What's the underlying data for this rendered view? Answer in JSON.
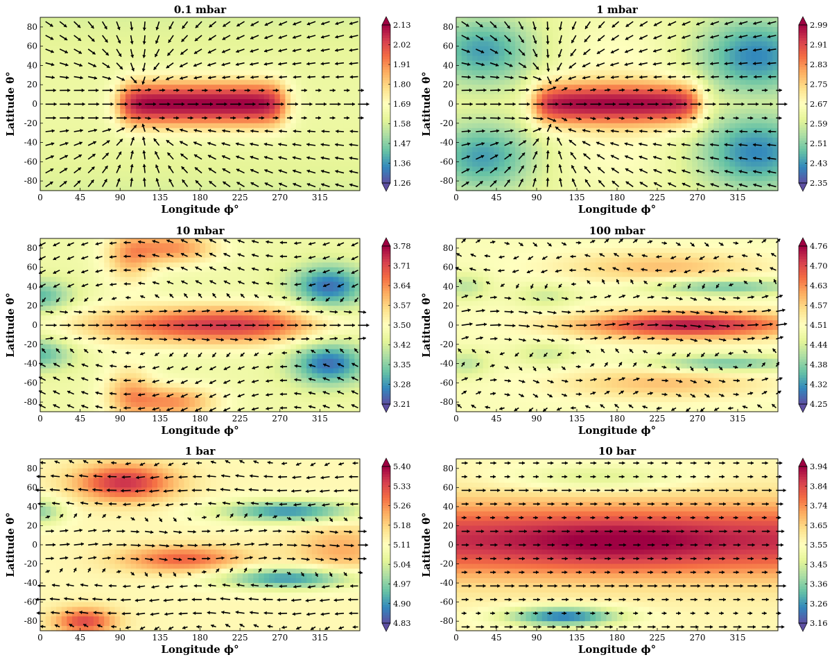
{
  "chart_data": [
    {
      "type": "heatmap",
      "title": "0.1 mbar",
      "xlabel": "Longitude ϕ°",
      "ylabel": "Latitude θ°",
      "xlim": [
        0,
        360
      ],
      "ylim": [
        -90,
        90
      ],
      "xticks": [
        "0",
        "45",
        "90",
        "135",
        "180",
        "225",
        "270",
        "315"
      ],
      "yticks": [
        "80",
        "60",
        "40",
        "20",
        "0",
        "-20",
        "-40",
        "-60",
        "-80"
      ],
      "colorbar": {
        "min": 1.26,
        "max": 2.13,
        "ticks": [
          "2.13",
          "2.02",
          "1.91",
          "1.80",
          "1.69",
          "1.58",
          "1.47",
          "1.36",
          "1.26"
        ]
      },
      "pattern": "hot equatorial band 90°–270° longitude, flow converging toward (110°, ±15°)"
    },
    {
      "type": "heatmap",
      "title": "1 mbar",
      "xlabel": "Longitude ϕ°",
      "ylabel": "Latitude θ°",
      "xlim": [
        0,
        360
      ],
      "ylim": [
        -90,
        90
      ],
      "xticks": [
        "0",
        "45",
        "90",
        "135",
        "180",
        "225",
        "270",
        "315"
      ],
      "yticks": [
        "80",
        "60",
        "40",
        "20",
        "0",
        "-20",
        "-40",
        "-60",
        "-80"
      ],
      "colorbar": {
        "min": 2.35,
        "max": 2.99,
        "ticks": [
          "2.99",
          "2.91",
          "2.83",
          "2.75",
          "2.67",
          "2.59",
          "2.51",
          "2.43",
          "2.35"
        ]
      },
      "pattern": "hot equatorial band 90°–270°, cold mid-latitude regions near 0°–60° and 290°–360°"
    },
    {
      "type": "heatmap",
      "title": "10 mbar",
      "xlabel": "Longitude ϕ°",
      "ylabel": "Latitude θ°",
      "xlim": [
        0,
        360
      ],
      "ylim": [
        -90,
        90
      ],
      "xticks": [
        "0",
        "45",
        "90",
        "135",
        "180",
        "225",
        "270",
        "315"
      ],
      "yticks": [
        "80",
        "60",
        "40",
        "20",
        "0",
        "-20",
        "-40",
        "-60",
        "-80"
      ],
      "colorbar": {
        "min": 3.21,
        "max": 3.78,
        "ticks": [
          "3.78",
          "3.71",
          "3.64",
          "3.57",
          "3.50",
          "3.42",
          "3.35",
          "3.28",
          "3.21"
        ]
      },
      "pattern": "hot equatorial jet peaking near 250°, cold vortices near (325°, ±40°), warm polar patches near 150°"
    },
    {
      "type": "heatmap",
      "title": "100 mbar",
      "xlabel": "Longitude ϕ°",
      "ylabel": "Latitude θ°",
      "xlim": [
        0,
        360
      ],
      "ylim": [
        -90,
        90
      ],
      "xticks": [
        "0",
        "45",
        "90",
        "135",
        "180",
        "225",
        "270",
        "315"
      ],
      "yticks": [
        "80",
        "60",
        "40",
        "20",
        "0",
        "-20",
        "-40",
        "-60",
        "-80"
      ],
      "colorbar": {
        "min": 4.25,
        "max": 4.76,
        "ticks": [
          "4.76",
          "4.70",
          "4.63",
          "4.57",
          "4.51",
          "4.44",
          "4.38",
          "4.32",
          "4.25"
        ]
      },
      "pattern": "hot equatorial band peaking near 260°, cool mid-latitude streaks near ±40°"
    },
    {
      "type": "heatmap",
      "title": "1 bar",
      "xlabel": "Longitude ϕ°",
      "ylabel": "Latitude θ°",
      "xlim": [
        0,
        360
      ],
      "ylim": [
        -90,
        90
      ],
      "xticks": [
        "0",
        "45",
        "90",
        "135",
        "180",
        "225",
        "270",
        "315"
      ],
      "yticks": [
        "80",
        "60",
        "40",
        "20",
        "0",
        "-20",
        "-40",
        "-60",
        "-80"
      ],
      "colorbar": {
        "min": 4.83,
        "max": 5.4,
        "ticks": [
          "5.40",
          "5.33",
          "5.26",
          "5.18",
          "5.11",
          "5.04",
          "4.97",
          "4.90",
          "4.83"
        ]
      },
      "pattern": "warm patches near (90°, 65°) and (50°, -80°), cold bands near 270° at ±35°"
    },
    {
      "type": "heatmap",
      "title": "10 bar",
      "xlabel": "Longitude ϕ°",
      "ylabel": "Latitude θ°",
      "xlim": [
        0,
        360
      ],
      "ylim": [
        -90,
        90
      ],
      "xticks": [
        "0",
        "45",
        "90",
        "135",
        "180",
        "225",
        "270",
        "315"
      ],
      "yticks": [
        "80",
        "60",
        "40",
        "20",
        "0",
        "-20",
        "-40",
        "-60",
        "-80"
      ],
      "colorbar": {
        "min": 3.16,
        "max": 3.94,
        "ticks": [
          "3.94",
          "3.84",
          "3.74",
          "3.65",
          "3.55",
          "3.45",
          "3.36",
          "3.26",
          "3.16"
        ]
      },
      "pattern": "zonally banded: hot band from 40° to -40°, cold arc near (110°, -70°)"
    }
  ]
}
